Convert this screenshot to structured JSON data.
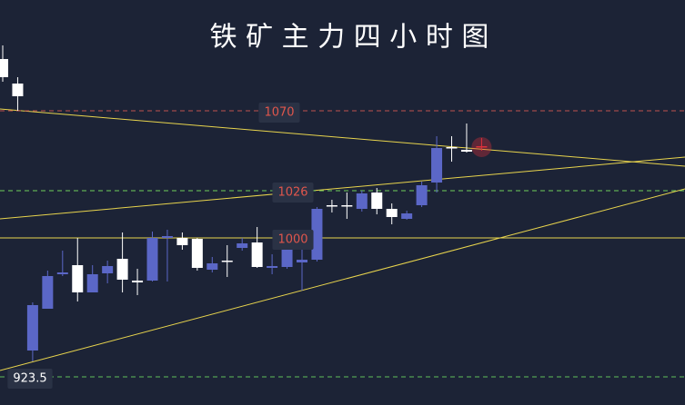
{
  "chart_data": {
    "type": "candlestick",
    "title": "铁 矿 主 力 四 小 时 图",
    "ylim": [
      908,
      1131
    ],
    "up_color": "#5b67c7",
    "down_color": "#ffffff",
    "highlight_color": "#e0303a",
    "candles": [
      {
        "open": 1098.5,
        "high": 1106,
        "low": 1086,
        "close": 1088.5
      },
      {
        "open": 1085,
        "high": 1088.5,
        "low": 1070,
        "close": 1078
      },
      {
        "open": 938,
        "high": 964.5,
        "low": 932,
        "close": 963
      },
      {
        "open": 961,
        "high": 982,
        "low": 961,
        "close": 979
      },
      {
        "open": 980,
        "high": 993,
        "low": 979,
        "close": 981
      },
      {
        "open": 985,
        "high": 1000,
        "low": 965,
        "close": 970
      },
      {
        "open": 970,
        "high": 985,
        "low": 970,
        "close": 980
      },
      {
        "open": 980.5,
        "high": 987.5,
        "low": 975,
        "close": 984.5
      },
      {
        "open": 988.5,
        "high": 1003,
        "low": 970,
        "close": 977
      },
      {
        "open": 976.5,
        "high": 983,
        "low": 968.5,
        "close": 975.5
      },
      {
        "open": 976.5,
        "high": 1003.5,
        "low": 976,
        "close": 1000
      },
      {
        "open": 1000,
        "high": 1004.5,
        "low": 976,
        "close": 1001
      },
      {
        "open": 1000,
        "high": 1003,
        "low": 993.5,
        "close": 996
      },
      {
        "open": 999.5,
        "high": 1000,
        "low": 982,
        "close": 983.5
      },
      {
        "open": 982.5,
        "high": 989.5,
        "low": 981,
        "close": 986
      },
      {
        "open": 987.5,
        "high": 996,
        "low": 978.5,
        "close": 987
      },
      {
        "open": 994.5,
        "high": 1000,
        "low": 993,
        "close": 997
      },
      {
        "open": 997.5,
        "high": 1006,
        "low": 983.5,
        "close": 984
      },
      {
        "open": 983.5,
        "high": 991,
        "low": 980,
        "close": 984.5
      },
      {
        "open": 984,
        "high": 999,
        "low": 983,
        "close": 998
      },
      {
        "open": 986.5,
        "high": 1000,
        "low": 971,
        "close": 988
      },
      {
        "open": 988,
        "high": 1017,
        "low": 987,
        "close": 1016
      },
      {
        "open": 1018,
        "high": 1021,
        "low": 1014,
        "close": 1017.5
      },
      {
        "open": 1018,
        "high": 1025,
        "low": 1010.5,
        "close": 1017.5
      },
      {
        "open": 1016,
        "high": 1026,
        "low": 1014.5,
        "close": 1024.5
      },
      {
        "open": 1025,
        "high": 1027.5,
        "low": 1013,
        "close": 1016
      },
      {
        "open": 1016,
        "high": 1019,
        "low": 1007.5,
        "close": 1011.5
      },
      {
        "open": 1010.5,
        "high": 1015,
        "low": 1010,
        "close": 1013.5
      },
      {
        "open": 1018,
        "high": 1031,
        "low": 1017,
        "close": 1029
      },
      {
        "open": 1030.5,
        "high": 1056,
        "low": 1025,
        "close": 1049.5
      },
      {
        "open": 1050,
        "high": 1056,
        "low": 1042,
        "close": 1049.5
      },
      {
        "open": 1048.5,
        "high": 1063,
        "low": 1047,
        "close": 1047.5
      },
      {
        "open": 1050.5,
        "high": 1055,
        "low": 1048,
        "close": 1050
      }
    ],
    "levels": [
      {
        "value": 1070,
        "line_color": "#c0504d",
        "label_color": "#e0564c",
        "dashed": true
      },
      {
        "value": 1026,
        "line_color": "#6fcf5a",
        "label_color": "#e0564c",
        "dashed": true
      },
      {
        "value": 1000,
        "line_color": "#e8d44d",
        "label_color": "#e0564c",
        "dashed": false
      },
      {
        "value": 923.5,
        "line_color": "#5fbf5a",
        "label_color": "#ffffff",
        "dashed": true
      }
    ]
  }
}
